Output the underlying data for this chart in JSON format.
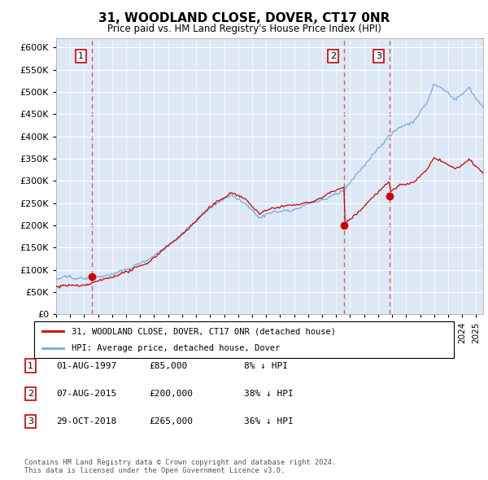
{
  "title": "31, WOODLAND CLOSE, DOVER, CT17 0NR",
  "subtitle": "Price paid vs. HM Land Registry's House Price Index (HPI)",
  "ytick_values": [
    0,
    50000,
    100000,
    150000,
    200000,
    250000,
    300000,
    350000,
    400000,
    450000,
    500000,
    550000,
    600000
  ],
  "ylim": [
    0,
    620000
  ],
  "xlim": [
    1995,
    2025.5
  ],
  "sales": [
    {
      "date_num": 1997.58,
      "price": 85000,
      "label": "1"
    },
    {
      "date_num": 2015.59,
      "price": 200000,
      "label": "2"
    },
    {
      "date_num": 2018.83,
      "price": 265000,
      "label": "3"
    }
  ],
  "vline_dates": [
    1997.58,
    2015.59,
    2018.83
  ],
  "legend_line1": "31, WOODLAND CLOSE, DOVER, CT17 0NR (detached house)",
  "legend_line2": "HPI: Average price, detached house, Dover",
  "table_rows": [
    {
      "num": "1",
      "date": "01-AUG-1997",
      "price": "£85,000",
      "hpi": "8% ↓ HPI"
    },
    {
      "num": "2",
      "date": "07-AUG-2015",
      "price": "£200,000",
      "hpi": "38% ↓ HPI"
    },
    {
      "num": "3",
      "date": "29-OCT-2018",
      "price": "£265,000",
      "hpi": "36% ↓ HPI"
    }
  ],
  "footer": "Contains HM Land Registry data © Crown copyright and database right 2024.\nThis data is licensed under the Open Government Licence v3.0.",
  "sale_color": "#cc0000",
  "hpi_color": "#7aaadd",
  "vline_color": "#dd4444",
  "background_color": "#ffffff",
  "plot_bg_color": "#dce8f5"
}
